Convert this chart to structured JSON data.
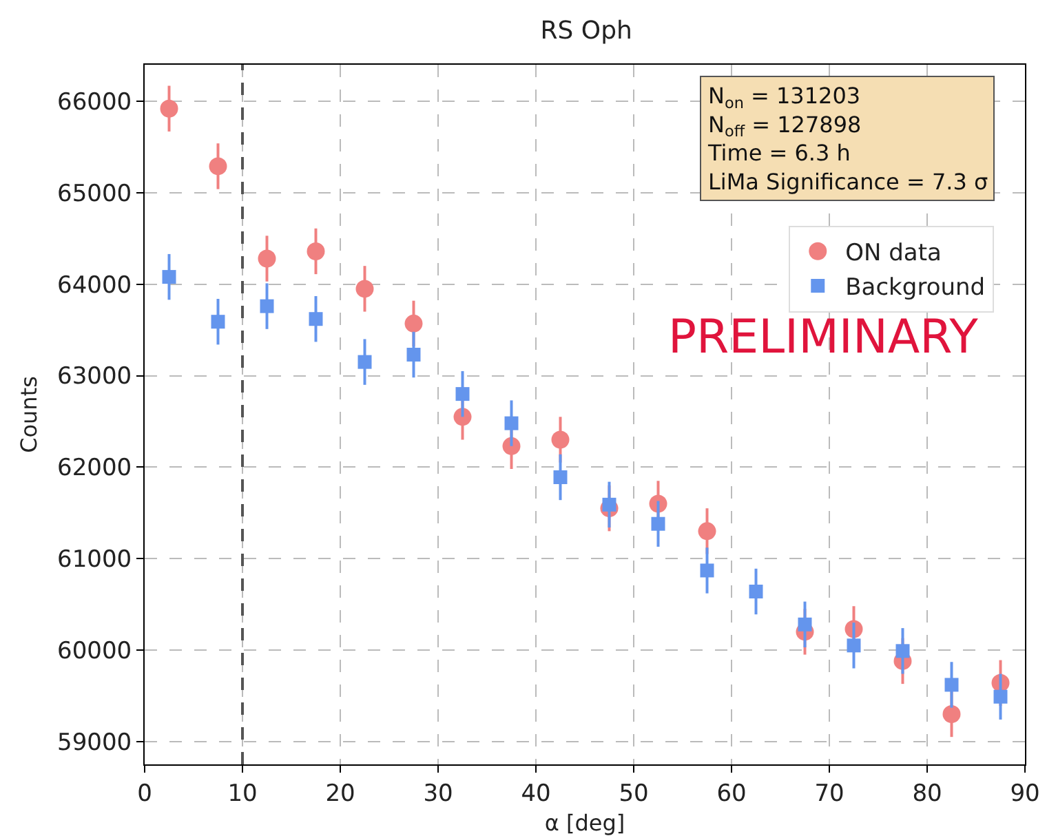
{
  "chart_data": {
    "type": "scatter",
    "title": "RS Oph",
    "xlabel": "α [deg]",
    "ylabel": "Counts",
    "x": [
      2.5,
      7.5,
      12.5,
      17.5,
      22.5,
      27.5,
      32.5,
      37.5,
      42.5,
      47.5,
      52.5,
      57.5,
      62.5,
      67.5,
      72.5,
      77.5,
      82.5,
      87.5
    ],
    "series": [
      {
        "name": "ON data",
        "color": "#f08080",
        "marker": "circle",
        "values": [
          65920,
          65290,
          64280,
          64360,
          63950,
          63570,
          62550,
          62230,
          62300,
          61550,
          61600,
          61300,
          null,
          60200,
          60230,
          59880,
          59300,
          59640
        ],
        "errors": [
          250,
          250,
          250,
          250,
          250,
          250,
          250,
          250,
          250,
          250,
          250,
          250,
          null,
          250,
          250,
          250,
          250,
          250
        ]
      },
      {
        "name": "Background",
        "color": "#6495ed",
        "marker": "square",
        "values": [
          64080,
          63590,
          63760,
          63620,
          63150,
          63230,
          62800,
          62480,
          61890,
          61590,
          61380,
          60870,
          60640,
          60280,
          60050,
          59990,
          59620,
          59490
        ],
        "errors": [
          250,
          250,
          250,
          250,
          250,
          250,
          250,
          250,
          250,
          250,
          250,
          250,
          250,
          250,
          250,
          250,
          250,
          250
        ]
      }
    ],
    "xlim": [
      0,
      90
    ],
    "xticks": [
      0,
      10,
      20,
      30,
      40,
      50,
      60,
      70,
      80,
      90
    ],
    "ylim": [
      58750,
      66400
    ],
    "yticks": [
      59000,
      60000,
      61000,
      62000,
      63000,
      64000,
      65000,
      66000
    ],
    "ref_lines": [
      {
        "axis": "x",
        "value": 10,
        "color": "#555555",
        "line_style": "dashed"
      }
    ],
    "annotations": [
      "N$_{on}$ = 131203\nN$_{off}$ = 127898\nTime = 6.3 h\nLiMa Significance = 7.3 σ",
      "PRELIMINARY"
    ],
    "grid": true,
    "legend": "top right"
  }
}
